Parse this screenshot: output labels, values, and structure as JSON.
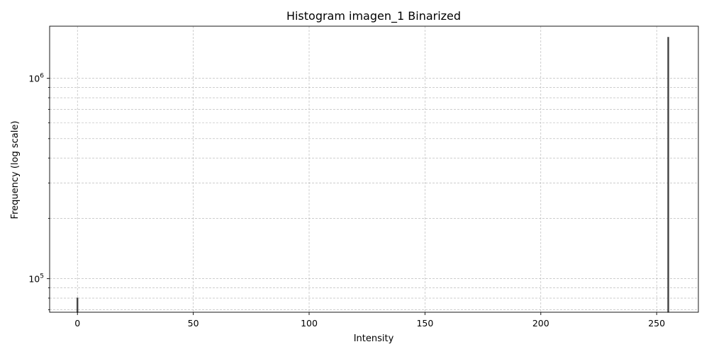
{
  "chart_data": {
    "type": "bar",
    "title": "Histogram imagen_1 Binarized",
    "xlabel": "Intensity",
    "ylabel": "Frequency (log scale)",
    "yscale": "log",
    "xlim": [
      -12,
      268
    ],
    "ylim": [
      68000,
      1820000
    ],
    "xticks": [
      0,
      50,
      100,
      150,
      200,
      250
    ],
    "xtick_labels": [
      "0",
      "50",
      "100",
      "150",
      "200",
      "250"
    ],
    "yticks_major": [
      100000,
      1000000
    ],
    "ytick_labels": [
      {
        "base": "10",
        "exp": "5"
      },
      {
        "base": "10",
        "exp": "6"
      }
    ],
    "grid": true,
    "bars": [
      {
        "x": 0,
        "value": 80000
      },
      {
        "x": 255,
        "value": 1600000
      }
    ],
    "colors": {
      "bar": "#444444",
      "grid": "#b0b0b0"
    }
  }
}
